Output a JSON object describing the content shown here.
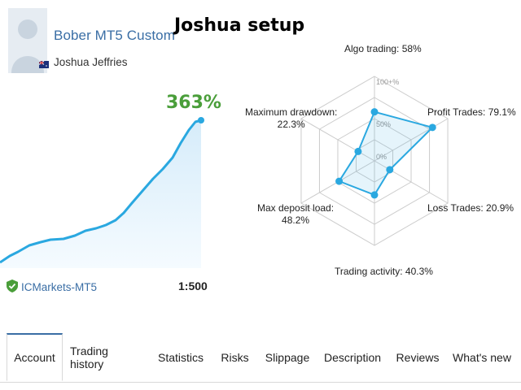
{
  "profile": {
    "signal_name": "Bober MT5 Custom",
    "author": "Joshua Jeffries",
    "flag_icon": "australia-flag-icon"
  },
  "page_title": "Joshua setup",
  "growth": {
    "value": "363%",
    "color": "#4a9e3a",
    "line_color": "#2aa8e0"
  },
  "broker": {
    "name": "ICMarkets-MT5",
    "verified_icon": "shield-check-icon",
    "leverage": "1:500"
  },
  "radar": {
    "scale_labels": [
      "100+%",
      "50%",
      "0%"
    ],
    "axes": [
      {
        "label": "Algo trading: 58%",
        "value": 58
      },
      {
        "label": "Profit Trades: 79.1%",
        "value": 79.1
      },
      {
        "label": "Loss Trades: 20.9%",
        "value": 20.9
      },
      {
        "label": "Trading activity: 40.3%",
        "value": 40.3
      },
      {
        "label_line1": "Max deposit load:",
        "label_line2": "48.2%",
        "value": 48.2
      },
      {
        "label_line1": "Maximum drawdown:",
        "label_line2": "22.3%",
        "value": 22.3
      }
    ]
  },
  "tabs": [
    {
      "label": "Account",
      "active": true
    },
    {
      "label": "Trading history"
    },
    {
      "label": "Statistics"
    },
    {
      "label": "Risks"
    },
    {
      "label": "Slippage"
    },
    {
      "label": "Description"
    },
    {
      "label": "Reviews"
    },
    {
      "label": "What's new"
    }
  ],
  "colors": {
    "accent_blue": "#3a6ea5",
    "radar_fill": "#2aa8e0",
    "grid": "#cccccc"
  }
}
